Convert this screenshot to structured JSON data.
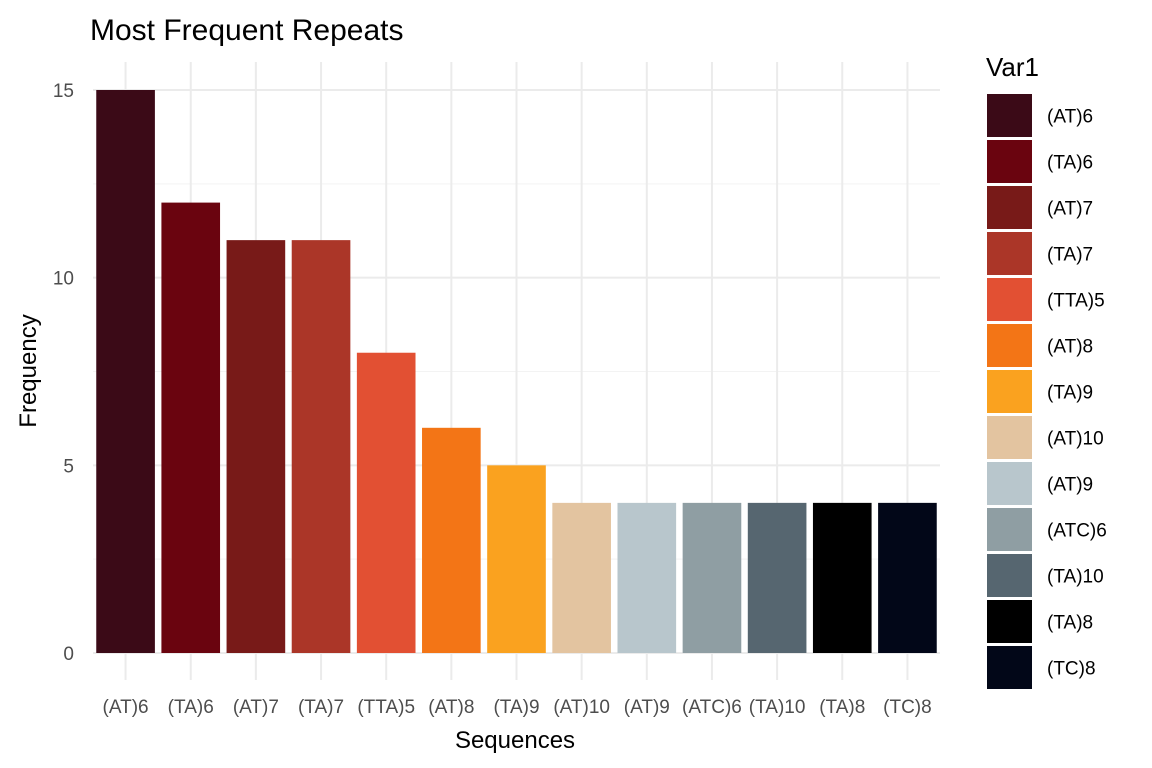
{
  "chart_data": {
    "type": "bar",
    "title": "Most Frequent Repeats",
    "xlabel": "Sequences",
    "ylabel": "Frequency",
    "legend_title": "Var1",
    "legend_position": "right",
    "grid": true,
    "ylim": [
      0,
      15.7
    ],
    "yticks": [
      0,
      5,
      10,
      15
    ],
    "categories": [
      "(AT)6",
      "(TA)6",
      "(AT)7",
      "(TA)7",
      "(TTA)5",
      "(AT)8",
      "(TA)9",
      "(AT)10",
      "(AT)9",
      "(ATC)6",
      "(TA)10",
      "(TA)8",
      "(TC)8"
    ],
    "values": [
      15,
      12,
      11,
      11,
      8,
      6,
      5,
      4,
      4,
      4,
      4,
      4,
      4
    ],
    "colors": [
      "#3b0a17",
      "#6a040f",
      "#781a18",
      "#ab3628",
      "#e25033",
      "#f37516",
      "#faa21f",
      "#e3c4a0",
      "#b8c6cc",
      "#8f9ea3",
      "#566670",
      "#000000",
      "#020718"
    ]
  }
}
